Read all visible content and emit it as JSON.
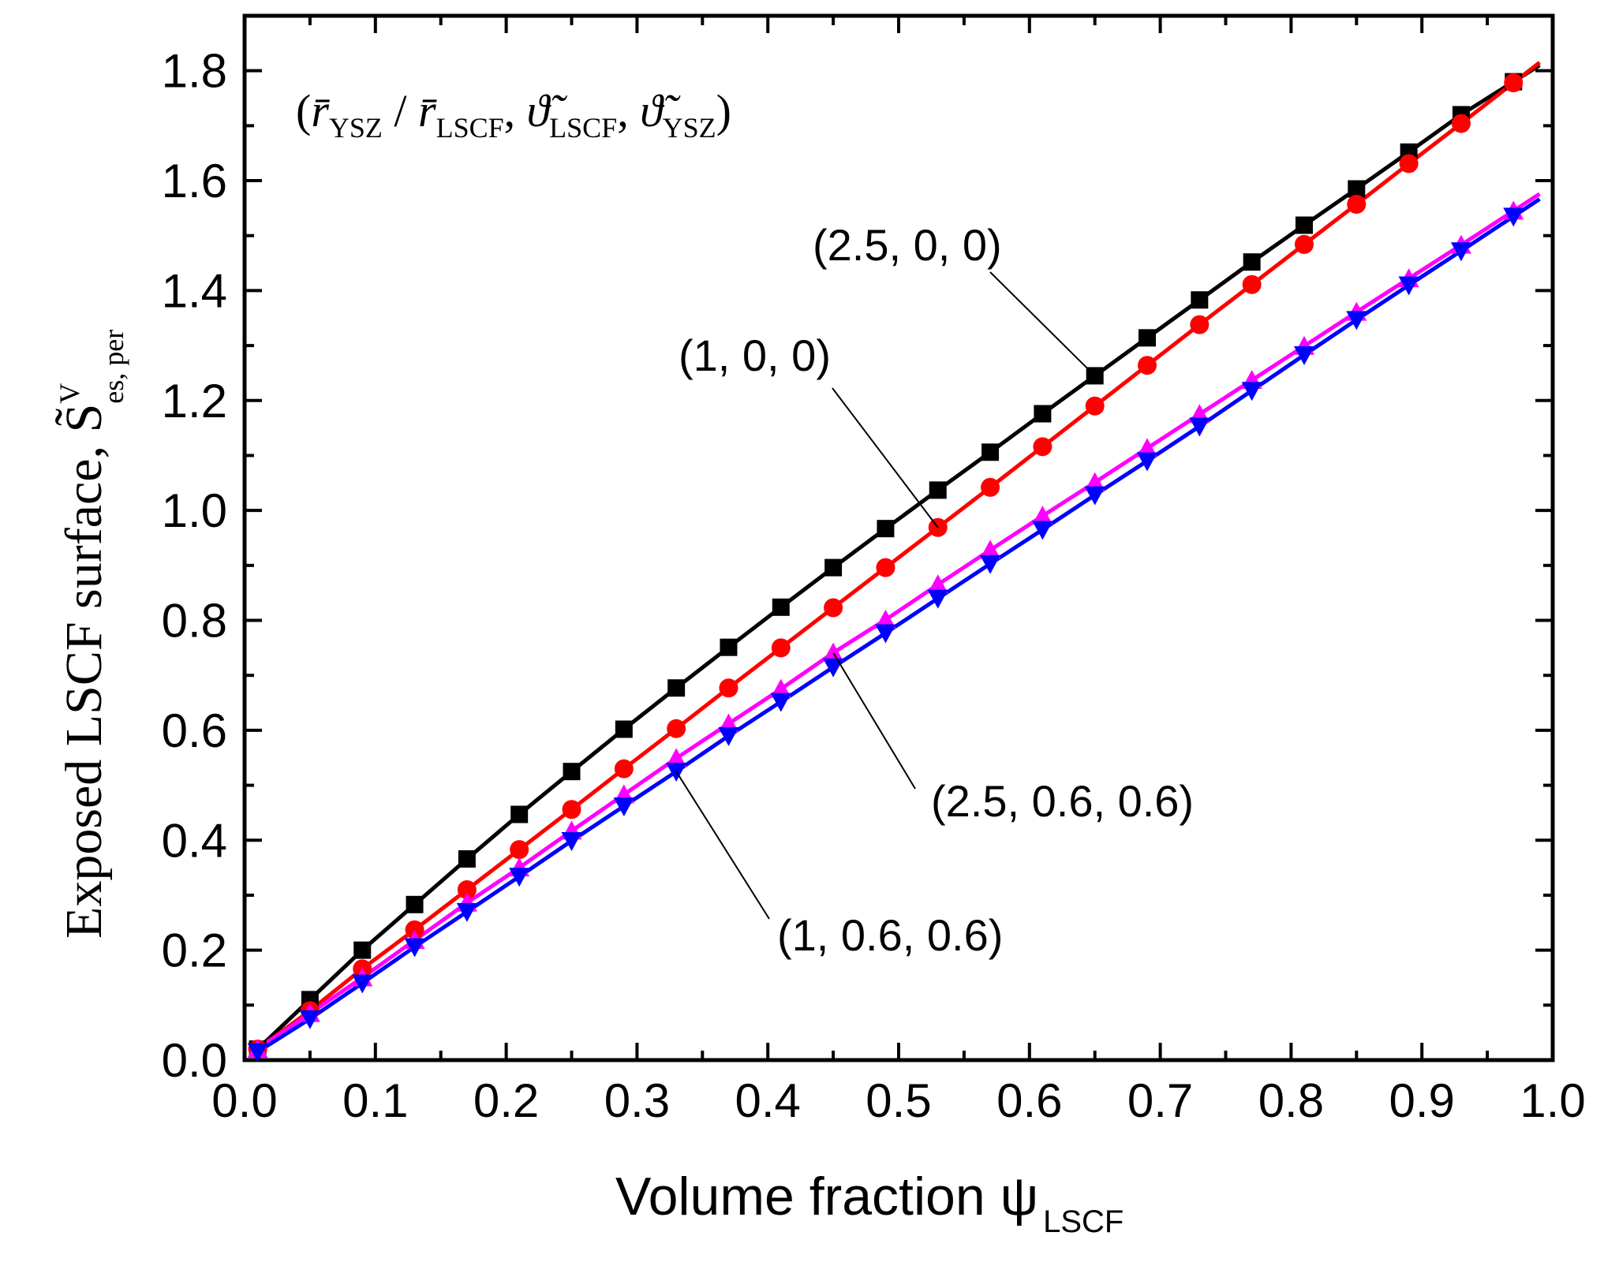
{
  "chart_data": {
    "type": "line",
    "title": "",
    "xlabel": "Volume fraction ψ",
    "xlabel_sub": "LSCF",
    "ylabel": "Exposed LSCF surface, S̃",
    "ylabel_sup": "V",
    "ylabel_sub": "es, per",
    "xlim": [
      0.0,
      1.0
    ],
    "ylim": [
      0.0,
      1.9
    ],
    "x_ticks": [
      "0.0",
      "0.1",
      "0.2",
      "0.3",
      "0.4",
      "0.5",
      "0.6",
      "0.7",
      "0.8",
      "0.9",
      "1.0"
    ],
    "y_ticks": [
      "0.0",
      "0.2",
      "0.4",
      "0.6",
      "0.8",
      "1.0",
      "1.2",
      "1.4",
      "1.6",
      "1.8"
    ],
    "legend_header": {
      "open": "(",
      "r": "r̄",
      "ysz": "YSZ",
      "slash": " / ",
      "lscf": "LSCF",
      "theta": "ϑ̃",
      "comma": ", ",
      "close": ")"
    },
    "x": [
      0.01,
      0.05,
      0.09,
      0.13,
      0.17,
      0.21,
      0.25,
      0.29,
      0.33,
      0.37,
      0.41,
      0.45,
      0.49,
      0.53,
      0.57,
      0.61,
      0.65,
      0.69,
      0.73,
      0.77,
      0.81,
      0.85,
      0.89,
      0.93,
      0.97
    ],
    "series": [
      {
        "name": "(2.5, 0, 0)",
        "color": "#000000",
        "marker": "square",
        "values": [
          0.02,
          0.11,
          0.2,
          0.283,
          0.366,
          0.447,
          0.525,
          0.602,
          0.677,
          0.751,
          0.824,
          0.896,
          0.967,
          1.037,
          1.106,
          1.176,
          1.245,
          1.314,
          1.383,
          1.452,
          1.519,
          1.585,
          1.652,
          1.72,
          1.78
        ]
      },
      {
        "name": "(1, 0, 0)",
        "color": "#ff0000",
        "marker": "circle",
        "values": [
          0.02,
          0.09,
          0.166,
          0.237,
          0.31,
          0.383,
          0.456,
          0.53,
          0.603,
          0.677,
          0.75,
          0.823,
          0.896,
          0.969,
          1.042,
          1.116,
          1.19,
          1.264,
          1.338,
          1.411,
          1.484,
          1.557,
          1.631,
          1.704,
          1.778
        ]
      },
      {
        "name": "(2.5, 0.6, 0.6)",
        "color": "#ff00ff",
        "marker": "triangle-up",
        "values": [
          0.02,
          0.085,
          0.15,
          0.218,
          0.286,
          0.35,
          0.417,
          0.483,
          0.549,
          0.612,
          0.675,
          0.741,
          0.801,
          0.865,
          0.928,
          0.99,
          1.051,
          1.113,
          1.175,
          1.237,
          1.299,
          1.361,
          1.422,
          1.483,
          1.545
        ]
      },
      {
        "name": "(1, 0.6, 0.6)",
        "color": "#0000ff",
        "marker": "triangle-down",
        "values": [
          0.015,
          0.075,
          0.14,
          0.206,
          0.27,
          0.334,
          0.399,
          0.462,
          0.525,
          0.59,
          0.652,
          0.715,
          0.777,
          0.84,
          0.903,
          0.965,
          1.028,
          1.09,
          1.153,
          1.218,
          1.283,
          1.347,
          1.41,
          1.472,
          1.535
        ]
      }
    ],
    "annotations": [
      {
        "text": "(2.5, 0, 0)",
        "points_to_series": 0,
        "at_x": 0.65
      },
      {
        "text": "(1, 0, 0)",
        "points_to_series": 1,
        "at_x": 0.53
      },
      {
        "text": "(2.5, 0.6, 0.6)",
        "points_to_series": 2,
        "at_x": 0.45
      },
      {
        "text": "(1, 0.6, 0.6)",
        "points_to_series": 3,
        "at_x": 0.33
      }
    ]
  }
}
